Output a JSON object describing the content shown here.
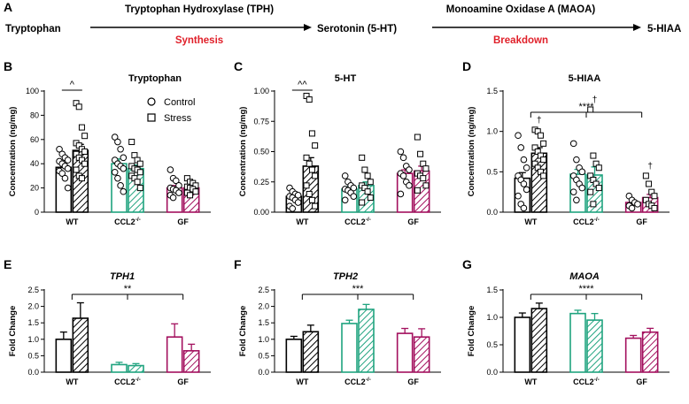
{
  "pathway": {
    "panel_letter": "A",
    "step1_substrate": "Tryptophan",
    "step1_enzyme": "Tryptophan Hydroxylase (TPH)",
    "step1_process": "Synthesis",
    "step2_substrate": "Serotonin (5-HT)",
    "step2_enzyme": "Monoamine Oxidase A (MAOA)",
    "step2_process": "Breakdown",
    "step2_product": "5-HIAA",
    "process_color": "#e0202a"
  },
  "colors": {
    "WT": "#000000",
    "CCL2": "#1fa37f",
    "GF": "#a3105e"
  },
  "legend": {
    "control": "Control",
    "stress": "Stress"
  },
  "group_labels": {
    "wt": "WT",
    "ccl2_base": "CCL2",
    "ccl2_sup": "-/-",
    "gf": "GF"
  },
  "chart_data": [
    {
      "panel": "B",
      "type": "bar",
      "title": "Tryptophan",
      "ylabel": "Concentration (ng/mg)",
      "ylim": [
        0,
        100
      ],
      "yticks": [
        "0",
        "20",
        "40",
        "60",
        "80",
        "100"
      ],
      "categories": [
        "WT",
        "CCL2-/-",
        "GF"
      ],
      "series": [
        {
          "name": "Control",
          "values": [
            37,
            40,
            20
          ],
          "errors": [
            3,
            4,
            2
          ]
        },
        {
          "name": "Stress",
          "values": [
            51,
            36,
            20
          ],
          "errors": [
            5,
            3,
            2
          ]
        }
      ],
      "points": {
        "Control": [
          [
            52,
            48,
            45,
            43,
            42,
            40,
            38,
            36,
            34,
            32,
            28,
            20
          ],
          [
            62,
            58,
            52,
            45,
            43,
            40,
            38,
            36,
            33,
            28,
            22,
            17
          ],
          [
            35,
            28,
            26,
            22,
            20,
            19,
            18,
            16,
            14,
            12
          ]
        ],
        "Stress": [
          [
            90,
            87,
            70,
            63,
            57,
            55,
            52,
            50,
            48,
            45,
            43,
            40,
            35,
            30,
            28
          ],
          [
            58,
            47,
            43,
            40,
            38,
            36,
            35,
            33,
            30,
            28,
            25,
            20
          ],
          [
            28,
            25,
            24,
            22,
            21,
            20,
            19,
            17,
            16,
            14
          ]
        ]
      },
      "annotations": [
        {
          "text": "^",
          "between": [
            "WT Control",
            "WT Stress"
          ]
        }
      ]
    },
    {
      "panel": "C",
      "type": "bar",
      "title": "5-HT",
      "ylabel": "Concentration (ng/mg)",
      "ylim": [
        0,
        1.0
      ],
      "yticks": [
        "0.00",
        "0.25",
        "0.50",
        "0.75",
        "1.00"
      ],
      "categories": [
        "WT",
        "CCL2-/-",
        "GF"
      ],
      "series": [
        {
          "name": "Control",
          "values": [
            0.13,
            0.19,
            0.32
          ],
          "errors": [
            0.02,
            0.02,
            0.03
          ]
        },
        {
          "name": "Stress",
          "values": [
            0.38,
            0.22,
            0.34
          ],
          "errors": [
            0.07,
            0.03,
            0.04
          ]
        }
      ],
      "points": {
        "Control": [
          [
            0.2,
            0.17,
            0.15,
            0.14,
            0.13,
            0.12,
            0.1,
            0.08,
            0.05,
            0.03
          ],
          [
            0.3,
            0.25,
            0.22,
            0.2,
            0.19,
            0.18,
            0.16,
            0.13,
            0.1
          ],
          [
            0.5,
            0.45,
            0.38,
            0.35,
            0.32,
            0.3,
            0.25,
            0.22,
            0.15
          ]
        ],
        "Stress": [
          [
            0.96,
            0.93,
            0.65,
            0.55,
            0.45,
            0.4,
            0.35,
            0.3,
            0.22,
            0.15,
            0.1,
            0.05
          ],
          [
            0.45,
            0.35,
            0.3,
            0.25,
            0.22,
            0.2,
            0.17,
            0.12,
            0.08
          ],
          [
            0.62,
            0.48,
            0.4,
            0.36,
            0.32,
            0.3,
            0.28,
            0.22,
            0.18
          ]
        ]
      },
      "annotations": [
        {
          "text": "^^",
          "between": [
            "WT Control",
            "WT Stress"
          ]
        }
      ]
    },
    {
      "panel": "D",
      "type": "bar",
      "title": "5-HIAA",
      "ylabel": "Concentration (ng/mg)",
      "ylim": [
        0,
        1.5
      ],
      "yticks": [
        "0.0",
        "0.5",
        "1.0",
        "1.5"
      ],
      "categories": [
        "WT",
        "CCL2-/-",
        "GF"
      ],
      "series": [
        {
          "name": "Control",
          "values": [
            0.42,
            0.47,
            0.12
          ],
          "errors": [
            0.07,
            0.06,
            0.02
          ]
        },
        {
          "name": "Stress",
          "values": [
            0.73,
            0.46,
            0.18
          ],
          "errors": [
            0.07,
            0.1,
            0.04
          ]
        }
      ],
      "points": {
        "Control": [
          [
            0.95,
            0.8,
            0.65,
            0.55,
            0.45,
            0.4,
            0.35,
            0.28,
            0.2,
            0.1,
            0.05
          ],
          [
            0.85,
            0.65,
            0.55,
            0.5,
            0.45,
            0.4,
            0.35,
            0.3,
            0.25,
            0.15
          ],
          [
            0.2,
            0.15,
            0.12,
            0.1,
            0.08,
            0.05
          ]
        ],
        "Stress": [
          [
            1.02,
            1.0,
            0.95,
            0.85,
            0.8,
            0.75,
            0.7,
            0.65,
            0.6,
            0.55,
            0.5,
            0.45
          ],
          [
            1.27,
            0.7,
            0.6,
            0.55,
            0.45,
            0.4,
            0.35,
            0.3,
            0.25,
            0.1
          ],
          [
            0.45,
            0.35,
            0.25,
            0.2,
            0.15,
            0.1,
            0.08,
            0.05
          ]
        ]
      },
      "daggers": [
        "WT Stress",
        "CCL2-/- Stress",
        "GF Stress"
      ],
      "dagger_symbol": "†",
      "annotations": [
        {
          "text": "****",
          "between": [
            "WT",
            "GF"
          ]
        }
      ]
    },
    {
      "panel": "E",
      "type": "bar",
      "title": "TPH1",
      "title_italic": true,
      "ylabel": "Fold Change",
      "ylim": [
        0,
        2.5
      ],
      "yticks": [
        "0.0",
        "0.5",
        "1.0",
        "1.5",
        "2.0",
        "2.5"
      ],
      "categories": [
        "WT",
        "CCL2-/-",
        "GF"
      ],
      "series": [
        {
          "name": "Control",
          "values": [
            1.0,
            0.23,
            1.07
          ],
          "errors": [
            0.22,
            0.07,
            0.4
          ]
        },
        {
          "name": "Stress",
          "values": [
            1.64,
            0.2,
            0.65
          ],
          "errors": [
            0.47,
            0.06,
            0.2
          ]
        }
      ],
      "annotations": [
        {
          "text": "**",
          "between": [
            "WT",
            "GF"
          ]
        }
      ]
    },
    {
      "panel": "F",
      "type": "bar",
      "title": "TPH2",
      "title_italic": true,
      "ylabel": "Fold Change",
      "ylim": [
        0,
        2.5
      ],
      "yticks": [
        "0.0",
        "0.5",
        "1.0",
        "1.5",
        "2.0",
        "2.5"
      ],
      "categories": [
        "WT",
        "CCL2-/-",
        "GF"
      ],
      "series": [
        {
          "name": "Control",
          "values": [
            1.0,
            1.48,
            1.18
          ],
          "errors": [
            0.09,
            0.1,
            0.15
          ]
        },
        {
          "name": "Stress",
          "values": [
            1.23,
            1.91,
            1.07
          ],
          "errors": [
            0.2,
            0.15,
            0.25
          ]
        }
      ],
      "annotations": [
        {
          "text": "***",
          "between": [
            "WT",
            "GF"
          ]
        }
      ]
    },
    {
      "panel": "G",
      "type": "bar",
      "title": "MAOA",
      "title_italic": true,
      "ylabel": "Fold Change",
      "ylim": [
        0,
        1.5
      ],
      "yticks": [
        "0.0",
        "0.5",
        "1.0",
        "1.5"
      ],
      "categories": [
        "WT",
        "CCL2-/-",
        "GF"
      ],
      "series": [
        {
          "name": "Control",
          "values": [
            1.0,
            1.07,
            0.62
          ],
          "errors": [
            0.08,
            0.06,
            0.05
          ]
        },
        {
          "name": "Stress",
          "values": [
            1.16,
            0.95,
            0.73
          ],
          "errors": [
            0.1,
            0.12,
            0.07
          ]
        }
      ],
      "annotations": [
        {
          "text": "****",
          "between": [
            "WT",
            "GF"
          ]
        }
      ]
    }
  ]
}
